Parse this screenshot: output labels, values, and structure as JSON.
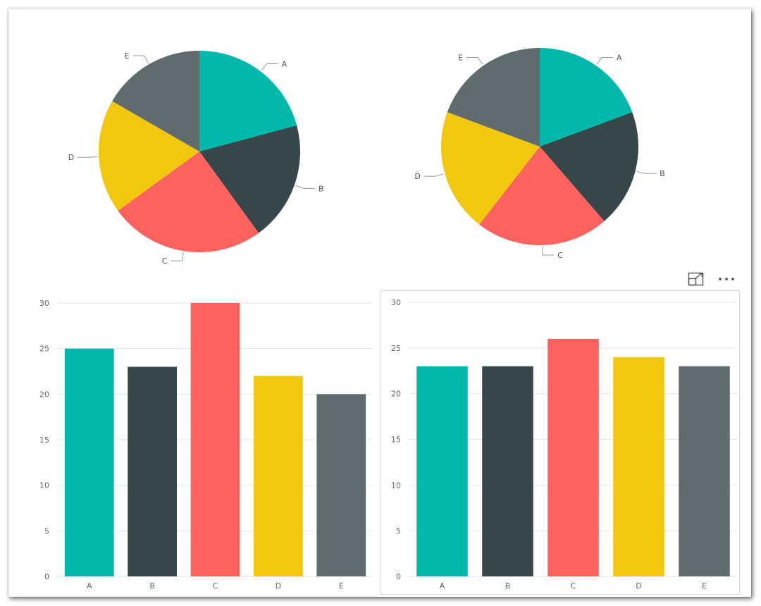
{
  "chart_data": [
    {
      "type": "pie",
      "categories": [
        "A",
        "B",
        "C",
        "D",
        "E"
      ],
      "values": [
        25,
        23,
        30,
        22,
        20
      ],
      "colors": [
        "#01B8AA",
        "#374649",
        "#FD625E",
        "#F2C80F",
        "#5F6B6D"
      ],
      "title": "",
      "legend": "none"
    },
    {
      "type": "pie",
      "categories": [
        "A",
        "B",
        "C",
        "D",
        "E"
      ],
      "values": [
        23,
        23,
        26,
        24,
        23
      ],
      "colors": [
        "#01B8AA",
        "#374649",
        "#FD625E",
        "#F2C80F",
        "#5F6B6D"
      ],
      "title": "",
      "legend": "none"
    },
    {
      "type": "bar",
      "categories": [
        "A",
        "B",
        "C",
        "D",
        "E"
      ],
      "values": [
        25,
        23,
        30,
        22,
        20
      ],
      "colors": [
        "#01B8AA",
        "#374649",
        "#FD625E",
        "#F2C80F",
        "#5F6B6D"
      ],
      "title": "",
      "xlabel": "",
      "ylabel": "",
      "ylim": [
        0,
        30
      ],
      "yticks": [
        0,
        5,
        10,
        15,
        20,
        25,
        30
      ],
      "grid": true
    },
    {
      "type": "bar",
      "categories": [
        "A",
        "B",
        "C",
        "D",
        "E"
      ],
      "values": [
        23,
        23,
        26,
        24,
        23
      ],
      "colors": [
        "#01B8AA",
        "#374649",
        "#FD625E",
        "#F2C80F",
        "#5F6B6D"
      ],
      "title": "",
      "xlabel": "",
      "ylabel": "",
      "ylim": [
        0,
        30
      ],
      "yticks": [
        0,
        5,
        10,
        15,
        20,
        25,
        30
      ],
      "grid": true
    }
  ],
  "visual_header": {
    "focus_mode_icon": "focus-mode-icon",
    "more_options_icon": "more-options-icon"
  }
}
